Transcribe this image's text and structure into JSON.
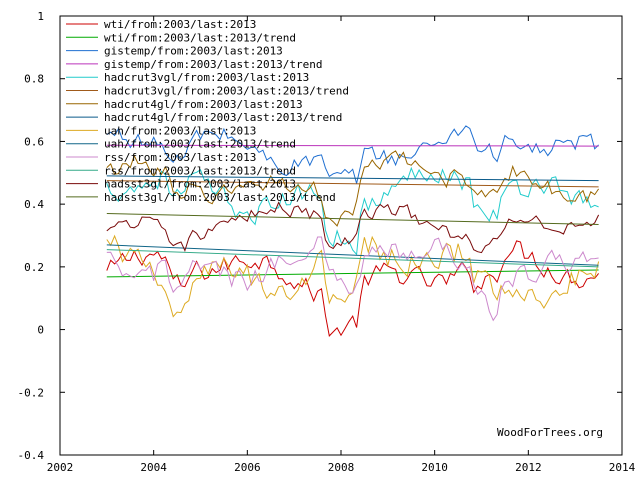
{
  "chart_data": {
    "type": "line",
    "xlim": [
      2002,
      2014
    ],
    "ylim": [
      -0.4,
      1
    ],
    "xticks": [
      2002,
      2004,
      2006,
      2008,
      2010,
      2012,
      2014
    ],
    "yticks": [
      -0.4,
      -0.2,
      0,
      0.2,
      0.4,
      0.6,
      0.8,
      1
    ],
    "xtick_labels": [
      "2002",
      "2004",
      "2006",
      "2008",
      "2010",
      "2012",
      "2014"
    ],
    "ytick_labels": [
      "-0.4",
      "-0.2",
      "0",
      "0.2",
      "0.4",
      "0.6",
      "0.8",
      "1"
    ],
    "grid": false,
    "legend_position": "top-left",
    "watermark": "WoodForTrees.org",
    "series": [
      {
        "name": "wti/from:2003/last:2013",
        "color": "#cc0000",
        "kind": "data",
        "base": 0.18,
        "wobble": 0.12
      },
      {
        "name": "wti/from:2003/last:2013/trend",
        "color": "#00aa00",
        "kind": "trend",
        "y0": 0.168,
        "y1": 0.19
      },
      {
        "name": "gistemp/from:2003/last:2013",
        "color": "#1f6fd1",
        "kind": "data",
        "base": 0.58,
        "wobble": 0.1
      },
      {
        "name": "gistemp/from:2003/last:2013/trend",
        "color": "#bb33bb",
        "kind": "trend",
        "y0": 0.588,
        "y1": 0.585
      },
      {
        "name": "hadcrut3vgl/from:2003/last:2013",
        "color": "#22cccc",
        "kind": "data",
        "base": 0.44,
        "wobble": 0.12
      },
      {
        "name": "hadcrut3vgl/from:2003/last:2013/trend",
        "color": "#a05a1a",
        "kind": "trend",
        "y0": 0.475,
        "y1": 0.455
      },
      {
        "name": "hadcrut4gl/from:2003/last:2013",
        "color": "#996600",
        "kind": "data",
        "base": 0.48,
        "wobble": 0.1
      },
      {
        "name": "hadcrut4gl/from:2003/last:2013/trend",
        "color": "#0a5a8a",
        "kind": "trend",
        "y0": 0.49,
        "y1": 0.475
      },
      {
        "name": "uah/from:2003/last:2013",
        "color": "#ddaa22",
        "kind": "data",
        "base": 0.2,
        "wobble": 0.15
      },
      {
        "name": "uah/from:2003/last:2013/trend",
        "color": "#116688",
        "kind": "trend",
        "y0": 0.27,
        "y1": 0.205
      },
      {
        "name": "rss/from:2003/last:2013",
        "color": "#cc88cc",
        "kind": "data",
        "base": 0.22,
        "wobble": 0.13
      },
      {
        "name": "rss/from:2003/last:2013/trend",
        "color": "#33aa88",
        "kind": "trend",
        "y0": 0.255,
        "y1": 0.2
      },
      {
        "name": "hadsst3gl/from:2003/last:2013",
        "color": "#7a0a0a",
        "kind": "data",
        "base": 0.35,
        "wobble": 0.08
      },
      {
        "name": "hadsst3gl/from:2003/last:2013/trend",
        "color": "#556b1f",
        "kind": "trend",
        "y0": 0.37,
        "y1": 0.335
      }
    ]
  }
}
